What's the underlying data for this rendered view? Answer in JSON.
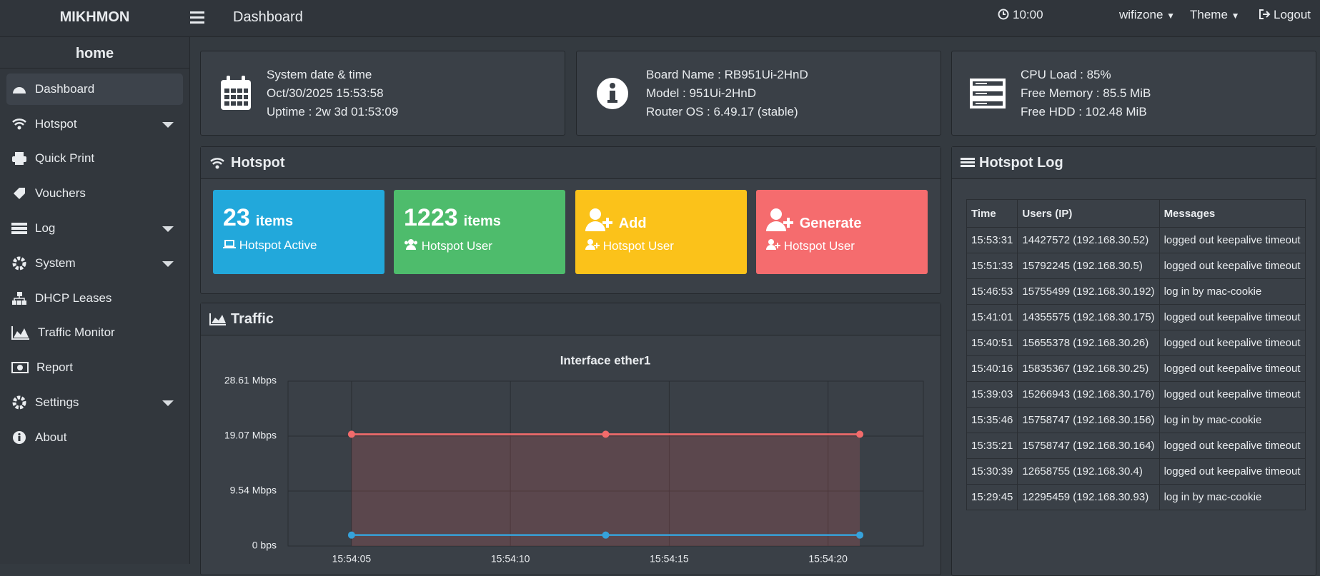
{
  "header": {
    "brand": "MIKHMON",
    "title": "Dashboard",
    "clock": "10:00",
    "user": "wifizone",
    "theme": "Theme",
    "logout": "Logout"
  },
  "sidebar": {
    "title": "home",
    "items": [
      "Dashboard",
      "Hotspot",
      "Quick Print",
      "Vouchers",
      "Log",
      "System",
      "DHCP Leases",
      "Traffic Monitor",
      "Report",
      "Settings",
      "About"
    ]
  },
  "info_cards": [
    {
      "lines": [
        "System date & time",
        "Oct/30/2025 15:53:58",
        "Uptime : 2w 3d 01:53:09"
      ]
    },
    {
      "lines": [
        "Board Name : RB951Ui-2HnD",
        "Model : 951Ui-2HnD",
        "Router OS : 6.49.17 (stable)"
      ]
    },
    {
      "lines": [
        "CPU Load : 85%",
        "Free Memory : 85.5 MiB",
        "Free HDD : 102.48 MiB"
      ]
    }
  ],
  "hotspot": {
    "title": "Hotspot",
    "tiles": [
      {
        "count": 23,
        "unit": "items",
        "label": "Hotspot Active"
      },
      {
        "count": 1223,
        "unit": "items",
        "label": "Hotspot User"
      },
      {
        "heading": "Add",
        "label": "Hotspot User"
      },
      {
        "heading": "Generate",
        "label": "Hotspot User"
      }
    ]
  },
  "traffic": {
    "title": "Traffic"
  },
  "chart_data": {
    "type": "line",
    "title": "Interface ether1",
    "x": [
      "15:54:05",
      "15:54:13",
      "15:54:21"
    ],
    "xlim": [
      "15:54:03",
      "15:54:23"
    ],
    "xticks": [
      "15:54:05",
      "15:54:10",
      "15:54:15",
      "15:54:20"
    ],
    "ylim": [
      0,
      28.61
    ],
    "yticks": [
      {
        "value": 0,
        "label": "0 bps"
      },
      {
        "value": 9.54,
        "label": "9.54 Mbps"
      },
      {
        "value": 19.07,
        "label": "19.07 Mbps"
      },
      {
        "value": 28.61,
        "label": "28.61 Mbps"
      }
    ],
    "grid": true,
    "series": [
      {
        "color": "#f26b6b",
        "area": true,
        "values": [
          19.4,
          19.4,
          19.4
        ]
      },
      {
        "color": "#36a2db",
        "area": false,
        "values": [
          1.9,
          1.9,
          1.9
        ]
      }
    ]
  },
  "hotspot_log": {
    "title": "Hotspot Log",
    "columns": [
      "Time",
      "Users (IP)",
      "Messages"
    ],
    "rows": [
      [
        "15:53:31",
        "14427572 (192.168.30.52)",
        "logged out keepalive timeout"
      ],
      [
        "15:51:33",
        "15792245 (192.168.30.5)",
        "logged out keepalive timeout"
      ],
      [
        "15:46:53",
        "15755499 (192.168.30.192)",
        "log in by mac-cookie"
      ],
      [
        "15:41:01",
        "14355575 (192.168.30.175)",
        "logged out keepalive timeout"
      ],
      [
        "15:40:51",
        "15655378 (192.168.30.26)",
        "logged out keepalive timeout"
      ],
      [
        "15:40:16",
        "15835367 (192.168.30.25)",
        "logged out keepalive timeout"
      ],
      [
        "15:39:03",
        "15266943 (192.168.30.176)",
        "logged out keepalive timeout"
      ],
      [
        "15:35:46",
        "15758747 (192.168.30.156)",
        "log in by mac-cookie"
      ],
      [
        "15:35:21",
        "15758747 (192.168.30.164)",
        "logged out keepalive timeout"
      ],
      [
        "15:30:39",
        "12658755 (192.168.30.4)",
        "logged out keepalive timeout"
      ],
      [
        "15:29:45",
        "12295459 (192.168.30.93)",
        "log in by mac-cookie"
      ]
    ]
  }
}
